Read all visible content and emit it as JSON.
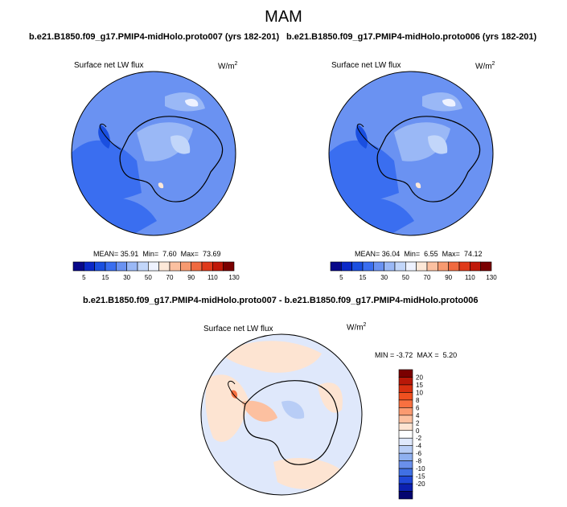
{
  "figure": {
    "season": "MAM",
    "case_a_title": "b.e21.B1850.f09_g17.PMIP4-midHolo.proto007 (yrs 182-201)",
    "case_b_title": "b.e21.B1850.f09_g17.PMIP4-midHolo.proto006 (yrs 182-201)",
    "diff_title": "b.e21.B1850.f09_g17.PMIP4-midHolo.proto007 - b.e21.B1850.f09_g17.PMIP4-midHolo.proto006"
  },
  "chart_data": [
    {
      "type": "heatmap",
      "id": "panel-a",
      "variable": "Surface net LW flux",
      "units_base": "W/m",
      "units_exp": "2",
      "stats": {
        "mean_label": "MEAN=",
        "mean": "35.91",
        "min_label": "Min=",
        "min": "7.60",
        "max_label": "Max=",
        "max": "73.69"
      },
      "colorbar": {
        "orientation": "horizontal",
        "colors": [
          "#08088a",
          "#0a28c8",
          "#1a4fe0",
          "#3a6ef0",
          "#6a92f2",
          "#9ab8f6",
          "#c2d6fa",
          "#eef2ff",
          "#fde8d8",
          "#fbc0a0",
          "#f79a70",
          "#f06a40",
          "#e03a1a",
          "#c01808",
          "#7a0000"
        ],
        "tick_labels": [
          "5",
          "15",
          "30",
          "50",
          "70",
          "90",
          "110",
          "130"
        ]
      }
    },
    {
      "type": "heatmap",
      "id": "panel-b",
      "variable": "Surface net LW flux",
      "units_base": "W/m",
      "units_exp": "2",
      "stats": {
        "mean_label": "MEAN=",
        "mean": "36.04",
        "min_label": "Min=",
        "min": "6.55",
        "max_label": "Max=",
        "max": "74.12"
      },
      "colorbar": {
        "orientation": "horizontal",
        "colors": [
          "#08088a",
          "#0a28c8",
          "#1a4fe0",
          "#3a6ef0",
          "#6a92f2",
          "#9ab8f6",
          "#c2d6fa",
          "#eef2ff",
          "#fde8d8",
          "#fbc0a0",
          "#f79a70",
          "#f06a40",
          "#e03a1a",
          "#c01808",
          "#7a0000"
        ],
        "tick_labels": [
          "5",
          "15",
          "30",
          "50",
          "70",
          "90",
          "110",
          "130"
        ]
      }
    },
    {
      "type": "heatmap",
      "id": "panel-diff",
      "variable": "Surface net LW flux",
      "units_base": "W/m",
      "units_exp": "2",
      "stats": {
        "min_label": "MIN =",
        "min": "-3.72",
        "max_label": "MAX =",
        "max": "5.20"
      },
      "colorbar": {
        "orientation": "vertical",
        "colors": [
          "#7a0000",
          "#b81808",
          "#d83010",
          "#f05020",
          "#f87040",
          "#fb9a70",
          "#fcc0a0",
          "#fde4d2",
          "#ffffff",
          "#dfe8fb",
          "#b8cdf6",
          "#8fb0f0",
          "#6a90ec",
          "#4070e4",
          "#2048d8",
          "#0c20b0",
          "#040470"
        ],
        "tick_labels": [
          "20",
          "15",
          "10",
          "8",
          "6",
          "4",
          "2",
          "0",
          "-2",
          "-4",
          "-6",
          "-8",
          "-10",
          "-15",
          "-20"
        ]
      }
    }
  ]
}
